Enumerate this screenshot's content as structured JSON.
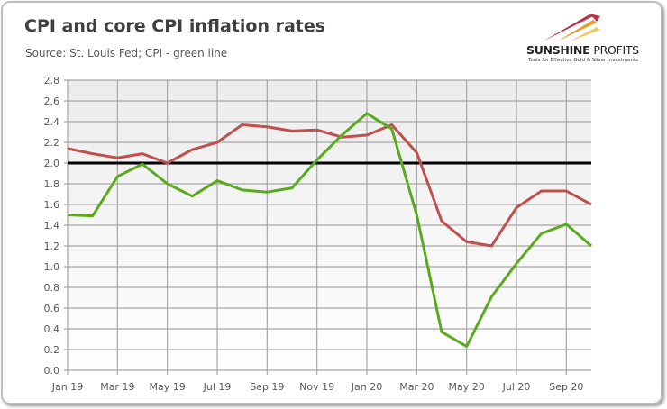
{
  "header": {
    "title": "CPI and core CPI inflation rates",
    "subtitle": "Source: St. Louis Fed; CPI - green line"
  },
  "logo": {
    "name_bold": "SUNSHINE",
    "name_regular": "PROFITS",
    "tagline": "Tools for Effective Gold & Silver Investments"
  },
  "chart_data": {
    "type": "line",
    "title": "CPI and core CPI inflation rates",
    "subtitle": "Source: St. Louis Fed; CPI - green line",
    "xlabel": "",
    "ylabel": "",
    "x": [
      "Jan 19",
      "Feb 19",
      "Mar 19",
      "Apr 19",
      "May 19",
      "Jun 19",
      "Jul 19",
      "Aug 19",
      "Sep 19",
      "Oct 19",
      "Nov 19",
      "Dec 19",
      "Jan 20",
      "Feb 20",
      "Mar 20",
      "Apr 20",
      "May 20",
      "Jun 20",
      "Jul 20",
      "Aug 20",
      "Sep 20",
      "Oct 20"
    ],
    "x_tick_labels": [
      "Jan 19",
      "Mar 19",
      "May 19",
      "Jul 19",
      "Sep 19",
      "Nov 19",
      "Jan 20",
      "Mar 20",
      "May 20",
      "Jul 20",
      "Sep 20"
    ],
    "y_tick_labels": [
      "0.0",
      "0.2",
      "0.4",
      "0.6",
      "0.8",
      "1.0",
      "1.2",
      "1.4",
      "1.6",
      "1.8",
      "2.0",
      "2.2",
      "2.4",
      "2.6",
      "2.8"
    ],
    "ylim": [
      0,
      2.8
    ],
    "grid": true,
    "reference_line": 2.0,
    "series": [
      {
        "color": "#c0504d",
        "values": [
          2.14,
          2.09,
          2.05,
          2.09,
          2.0,
          2.13,
          2.2,
          2.37,
          2.35,
          2.31,
          2.32,
          2.25,
          2.27,
          2.37,
          2.1,
          1.44,
          1.24,
          1.2,
          1.57,
          1.73,
          1.73,
          1.6
        ]
      },
      {
        "color": "#5aaa1e",
        "values": [
          1.5,
          1.49,
          1.87,
          1.99,
          1.8,
          1.68,
          1.83,
          1.74,
          1.72,
          1.76,
          2.03,
          2.27,
          2.48,
          2.33,
          1.5,
          0.37,
          0.23,
          0.71,
          1.03,
          1.32,
          1.41,
          1.2
        ]
      }
    ]
  }
}
